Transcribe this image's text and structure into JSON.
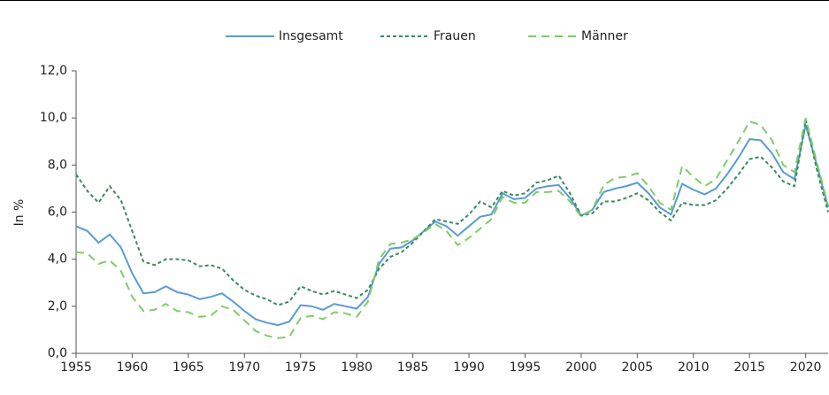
{
  "chart_data": {
    "type": "line",
    "y_label": "In %",
    "x": [
      1955,
      1956,
      1957,
      1958,
      1959,
      1960,
      1961,
      1962,
      1963,
      1964,
      1965,
      1966,
      1967,
      1968,
      1969,
      1970,
      1971,
      1972,
      1973,
      1974,
      1975,
      1976,
      1977,
      1978,
      1979,
      1980,
      1981,
      1982,
      1983,
      1984,
      1985,
      1986,
      1987,
      1988,
      1989,
      1990,
      1991,
      1992,
      1993,
      1994,
      1995,
      1996,
      1997,
      1998,
      1999,
      2000,
      2001,
      2002,
      2003,
      2004,
      2005,
      2006,
      2007,
      2008,
      2009,
      2010,
      2011,
      2012,
      2013,
      2014,
      2015,
      2016,
      2017,
      2018,
      2019,
      2020,
      2021,
      2022
    ],
    "series": [
      {
        "name": "Insgesamt",
        "color": "#5b9bd5",
        "values": [
          5.4,
          5.2,
          4.7,
          5.05,
          4.5,
          3.4,
          2.55,
          2.6,
          2.85,
          2.6,
          2.5,
          2.3,
          2.4,
          2.55,
          2.2,
          1.8,
          1.45,
          1.3,
          1.2,
          1.35,
          2.05,
          2.0,
          1.85,
          2.1,
          2.0,
          1.9,
          2.4,
          3.8,
          4.45,
          4.5,
          4.8,
          5.2,
          5.6,
          5.4,
          5.0,
          5.4,
          5.8,
          5.9,
          6.8,
          6.55,
          6.6,
          7.0,
          7.1,
          7.15,
          6.6,
          5.85,
          6.1,
          6.85,
          7.0,
          7.1,
          7.25,
          6.8,
          6.2,
          5.9,
          7.2,
          6.95,
          6.75,
          7.0,
          7.6,
          8.3,
          9.1,
          9.05,
          8.5,
          7.7,
          7.4,
          9.7,
          8.0,
          6.2
        ]
      },
      {
        "name": "Frauen",
        "color": "#3a8a5e",
        "values": [
          7.6,
          6.9,
          6.4,
          7.1,
          6.5,
          5.2,
          3.9,
          3.75,
          4.0,
          4.0,
          3.95,
          3.7,
          3.75,
          3.6,
          3.1,
          2.7,
          2.45,
          2.3,
          2.05,
          2.2,
          2.85,
          2.65,
          2.5,
          2.65,
          2.5,
          2.35,
          2.7,
          3.6,
          4.1,
          4.3,
          4.7,
          5.2,
          5.7,
          5.6,
          5.5,
          5.9,
          6.45,
          6.2,
          6.9,
          6.7,
          6.8,
          7.25,
          7.35,
          7.55,
          6.8,
          5.85,
          5.95,
          6.45,
          6.45,
          6.6,
          6.8,
          6.5,
          6.0,
          5.65,
          6.4,
          6.3,
          6.3,
          6.5,
          7.0,
          7.6,
          8.25,
          8.35,
          7.9,
          7.3,
          7.1,
          9.9,
          7.8,
          6.0
        ]
      },
      {
        "name": "Männer",
        "color": "#7fcc6a",
        "values": [
          4.3,
          4.25,
          3.8,
          3.95,
          3.5,
          2.4,
          1.8,
          1.85,
          2.1,
          1.8,
          1.75,
          1.55,
          1.6,
          2.0,
          1.85,
          1.4,
          0.95,
          0.75,
          0.65,
          0.7,
          1.5,
          1.6,
          1.45,
          1.75,
          1.7,
          1.55,
          2.2,
          4.0,
          4.65,
          4.7,
          4.85,
          5.15,
          5.5,
          5.2,
          4.6,
          4.9,
          5.3,
          5.7,
          6.65,
          6.4,
          6.4,
          6.85,
          6.85,
          6.9,
          6.45,
          5.8,
          6.1,
          7.15,
          7.45,
          7.5,
          7.65,
          7.1,
          6.4,
          6.1,
          7.95,
          7.5,
          7.1,
          7.4,
          8.2,
          9.0,
          9.85,
          9.7,
          9.05,
          8.0,
          7.7,
          10.0,
          8.1,
          6.3
        ]
      }
    ],
    "xlim": [
      1955,
      2022
    ],
    "xticks": [
      1955,
      1960,
      1965,
      1970,
      1975,
      1980,
      1985,
      1990,
      1995,
      2000,
      2005,
      2010,
      2015,
      2020
    ],
    "ylim": [
      0,
      12
    ],
    "yticks": [
      {
        "value": 0,
        "label": "0,0"
      },
      {
        "value": 2,
        "label": "2,0"
      },
      {
        "value": 4,
        "label": "4,0"
      },
      {
        "value": 6,
        "label": "6,0"
      },
      {
        "value": 8,
        "label": "8,0"
      },
      {
        "value": 10,
        "label": "10,0"
      },
      {
        "value": 12,
        "label": "12,0"
      }
    ],
    "legend": "top"
  }
}
